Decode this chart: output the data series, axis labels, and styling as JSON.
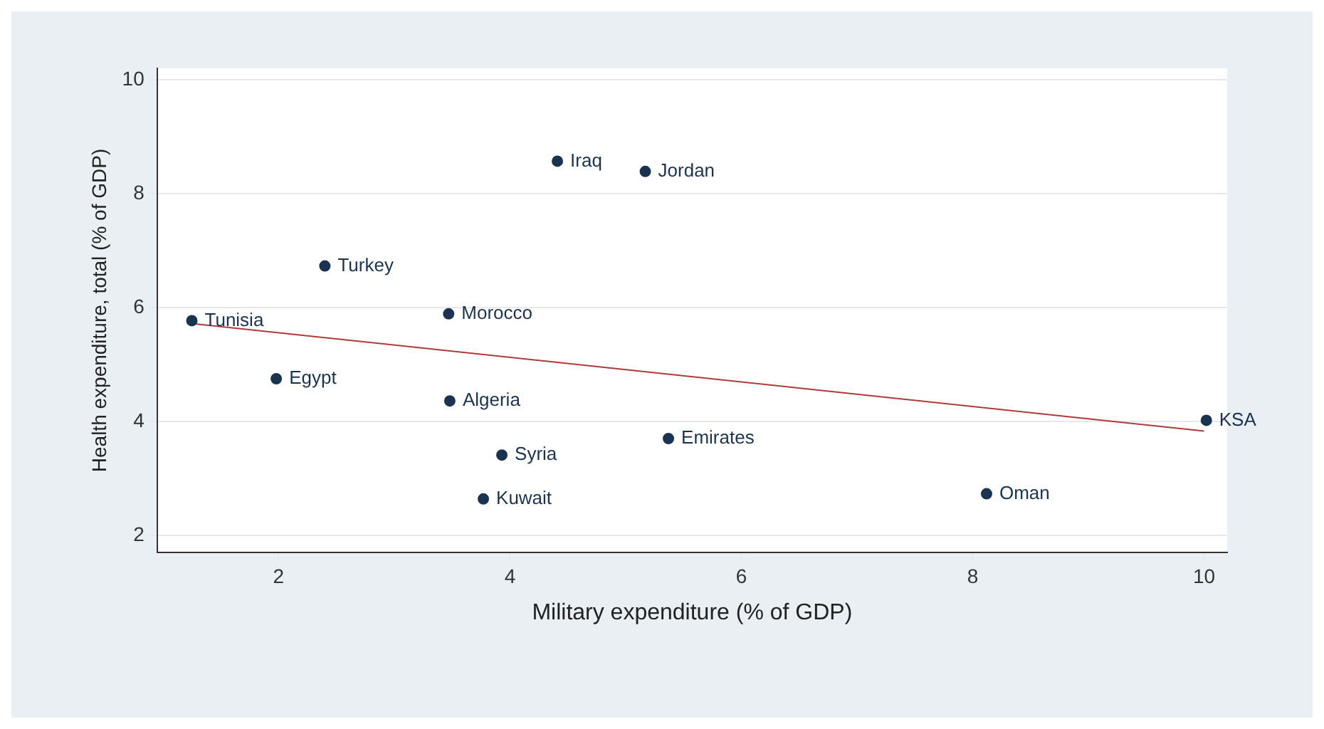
{
  "chart_data": {
    "type": "scatter",
    "xlabel": "Military expenditure (% of GDP)",
    "ylabel": "Health expenditure, total (% of GDP)",
    "xlim": [
      0.95,
      10.2
    ],
    "xticks": [
      2,
      4,
      6,
      8,
      10
    ],
    "ylim": [
      1.7,
      10.2
    ],
    "yticks": [
      2,
      4,
      6,
      8,
      10
    ],
    "grid": "y",
    "marker": "circle",
    "legend": false,
    "series": [
      {
        "color": "#1a3350",
        "x": [
          4.41,
          5.17,
          2.4,
          1.25,
          3.47,
          1.98,
          3.48,
          3.93,
          5.37,
          3.77,
          8.12,
          10.02
        ],
        "values": [
          8.57,
          8.39,
          6.73,
          5.77,
          5.89,
          4.75,
          4.36,
          3.41,
          3.7,
          2.64,
          2.73,
          4.02
        ]
      },
      {
        "type": "line",
        "color": "#b03a3a",
        "marker": "none",
        "x": [
          1.25,
          10
        ],
        "values": [
          5.72,
          3.83
        ]
      }
    ],
    "annotations": [
      {
        "text": "Iraq",
        "x": 4.41,
        "y": 8.57
      },
      {
        "text": "Jordan",
        "x": 5.17,
        "y": 8.39
      },
      {
        "text": "Turkey",
        "x": 2.4,
        "y": 6.73
      },
      {
        "text": "Tunisia",
        "x": 1.25,
        "y": 5.77
      },
      {
        "text": "Morocco",
        "x": 3.47,
        "y": 5.89
      },
      {
        "text": "Egypt",
        "x": 1.98,
        "y": 4.75
      },
      {
        "text": "Algeria",
        "x": 3.48,
        "y": 4.36
      },
      {
        "text": "Syria",
        "x": 3.93,
        "y": 3.41
      },
      {
        "text": "Emirates",
        "x": 5.37,
        "y": 3.7
      },
      {
        "text": "Kuwait",
        "x": 3.77,
        "y": 2.64
      },
      {
        "text": "Oman",
        "x": 8.12,
        "y": 2.73
      },
      {
        "text": "KSA",
        "x": 10.02,
        "y": 4.02
      }
    ]
  }
}
